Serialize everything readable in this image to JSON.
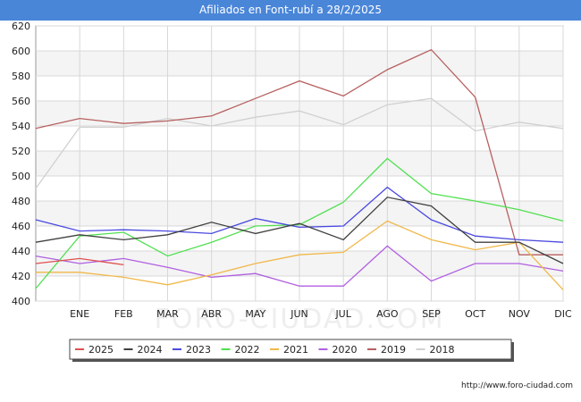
{
  "chart_data": {
    "type": "line",
    "title": "Afiliados en Font-rubí a 28/2/2025",
    "categories": [
      "",
      "ENE",
      "FEB",
      "MAR",
      "ABR",
      "MAY",
      "JUN",
      "JUL",
      "AGO",
      "SEP",
      "OCT",
      "NOV",
      "DIC"
    ],
    "ylim": [
      400,
      620
    ],
    "yticks": [
      400,
      420,
      440,
      460,
      480,
      500,
      520,
      540,
      560,
      580,
      600,
      620
    ],
    "grid": true,
    "legend_position": "bottom",
    "watermark": "FORO-CIUDAD.COM",
    "series": [
      {
        "name": "2025",
        "color": "#e05050",
        "values": [
          430,
          434,
          429,
          null,
          null,
          null,
          null,
          null,
          null,
          null,
          null,
          null,
          null
        ]
      },
      {
        "name": "2024",
        "color": "#404040",
        "values": [
          447,
          453,
          449,
          453,
          463,
          454,
          462,
          449,
          483,
          476,
          447,
          447,
          430
        ]
      },
      {
        "name": "2023",
        "color": "#4a4ae0",
        "values": [
          465,
          456,
          457,
          456,
          454,
          466,
          459,
          460,
          491,
          465,
          452,
          449,
          447
        ]
      },
      {
        "name": "2022",
        "color": "#50e050",
        "values": [
          410,
          452,
          455,
          436,
          447,
          460,
          461,
          479,
          514,
          486,
          480,
          473,
          464
        ]
      },
      {
        "name": "2021",
        "color": "#f0b84a",
        "values": [
          423,
          423,
          419,
          413,
          421,
          430,
          437,
          439,
          464,
          449,
          441,
          447,
          409
        ]
      },
      {
        "name": "2020",
        "color": "#b060e0",
        "values": [
          436,
          430,
          434,
          427,
          419,
          422,
          412,
          412,
          444,
          416,
          430,
          430,
          424
        ]
      },
      {
        "name": "2019",
        "color": "#b86060",
        "values": [
          538,
          546,
          542,
          544,
          548,
          562,
          576,
          564,
          585,
          601,
          563,
          437,
          437
        ]
      },
      {
        "name": "2018",
        "color": "#d0d0d0",
        "values": [
          490,
          539,
          539,
          546,
          540,
          547,
          552,
          541,
          557,
          562,
          536,
          543,
          538
        ]
      }
    ]
  },
  "footer": {
    "url": "http://www.foro-ciudad.com"
  }
}
